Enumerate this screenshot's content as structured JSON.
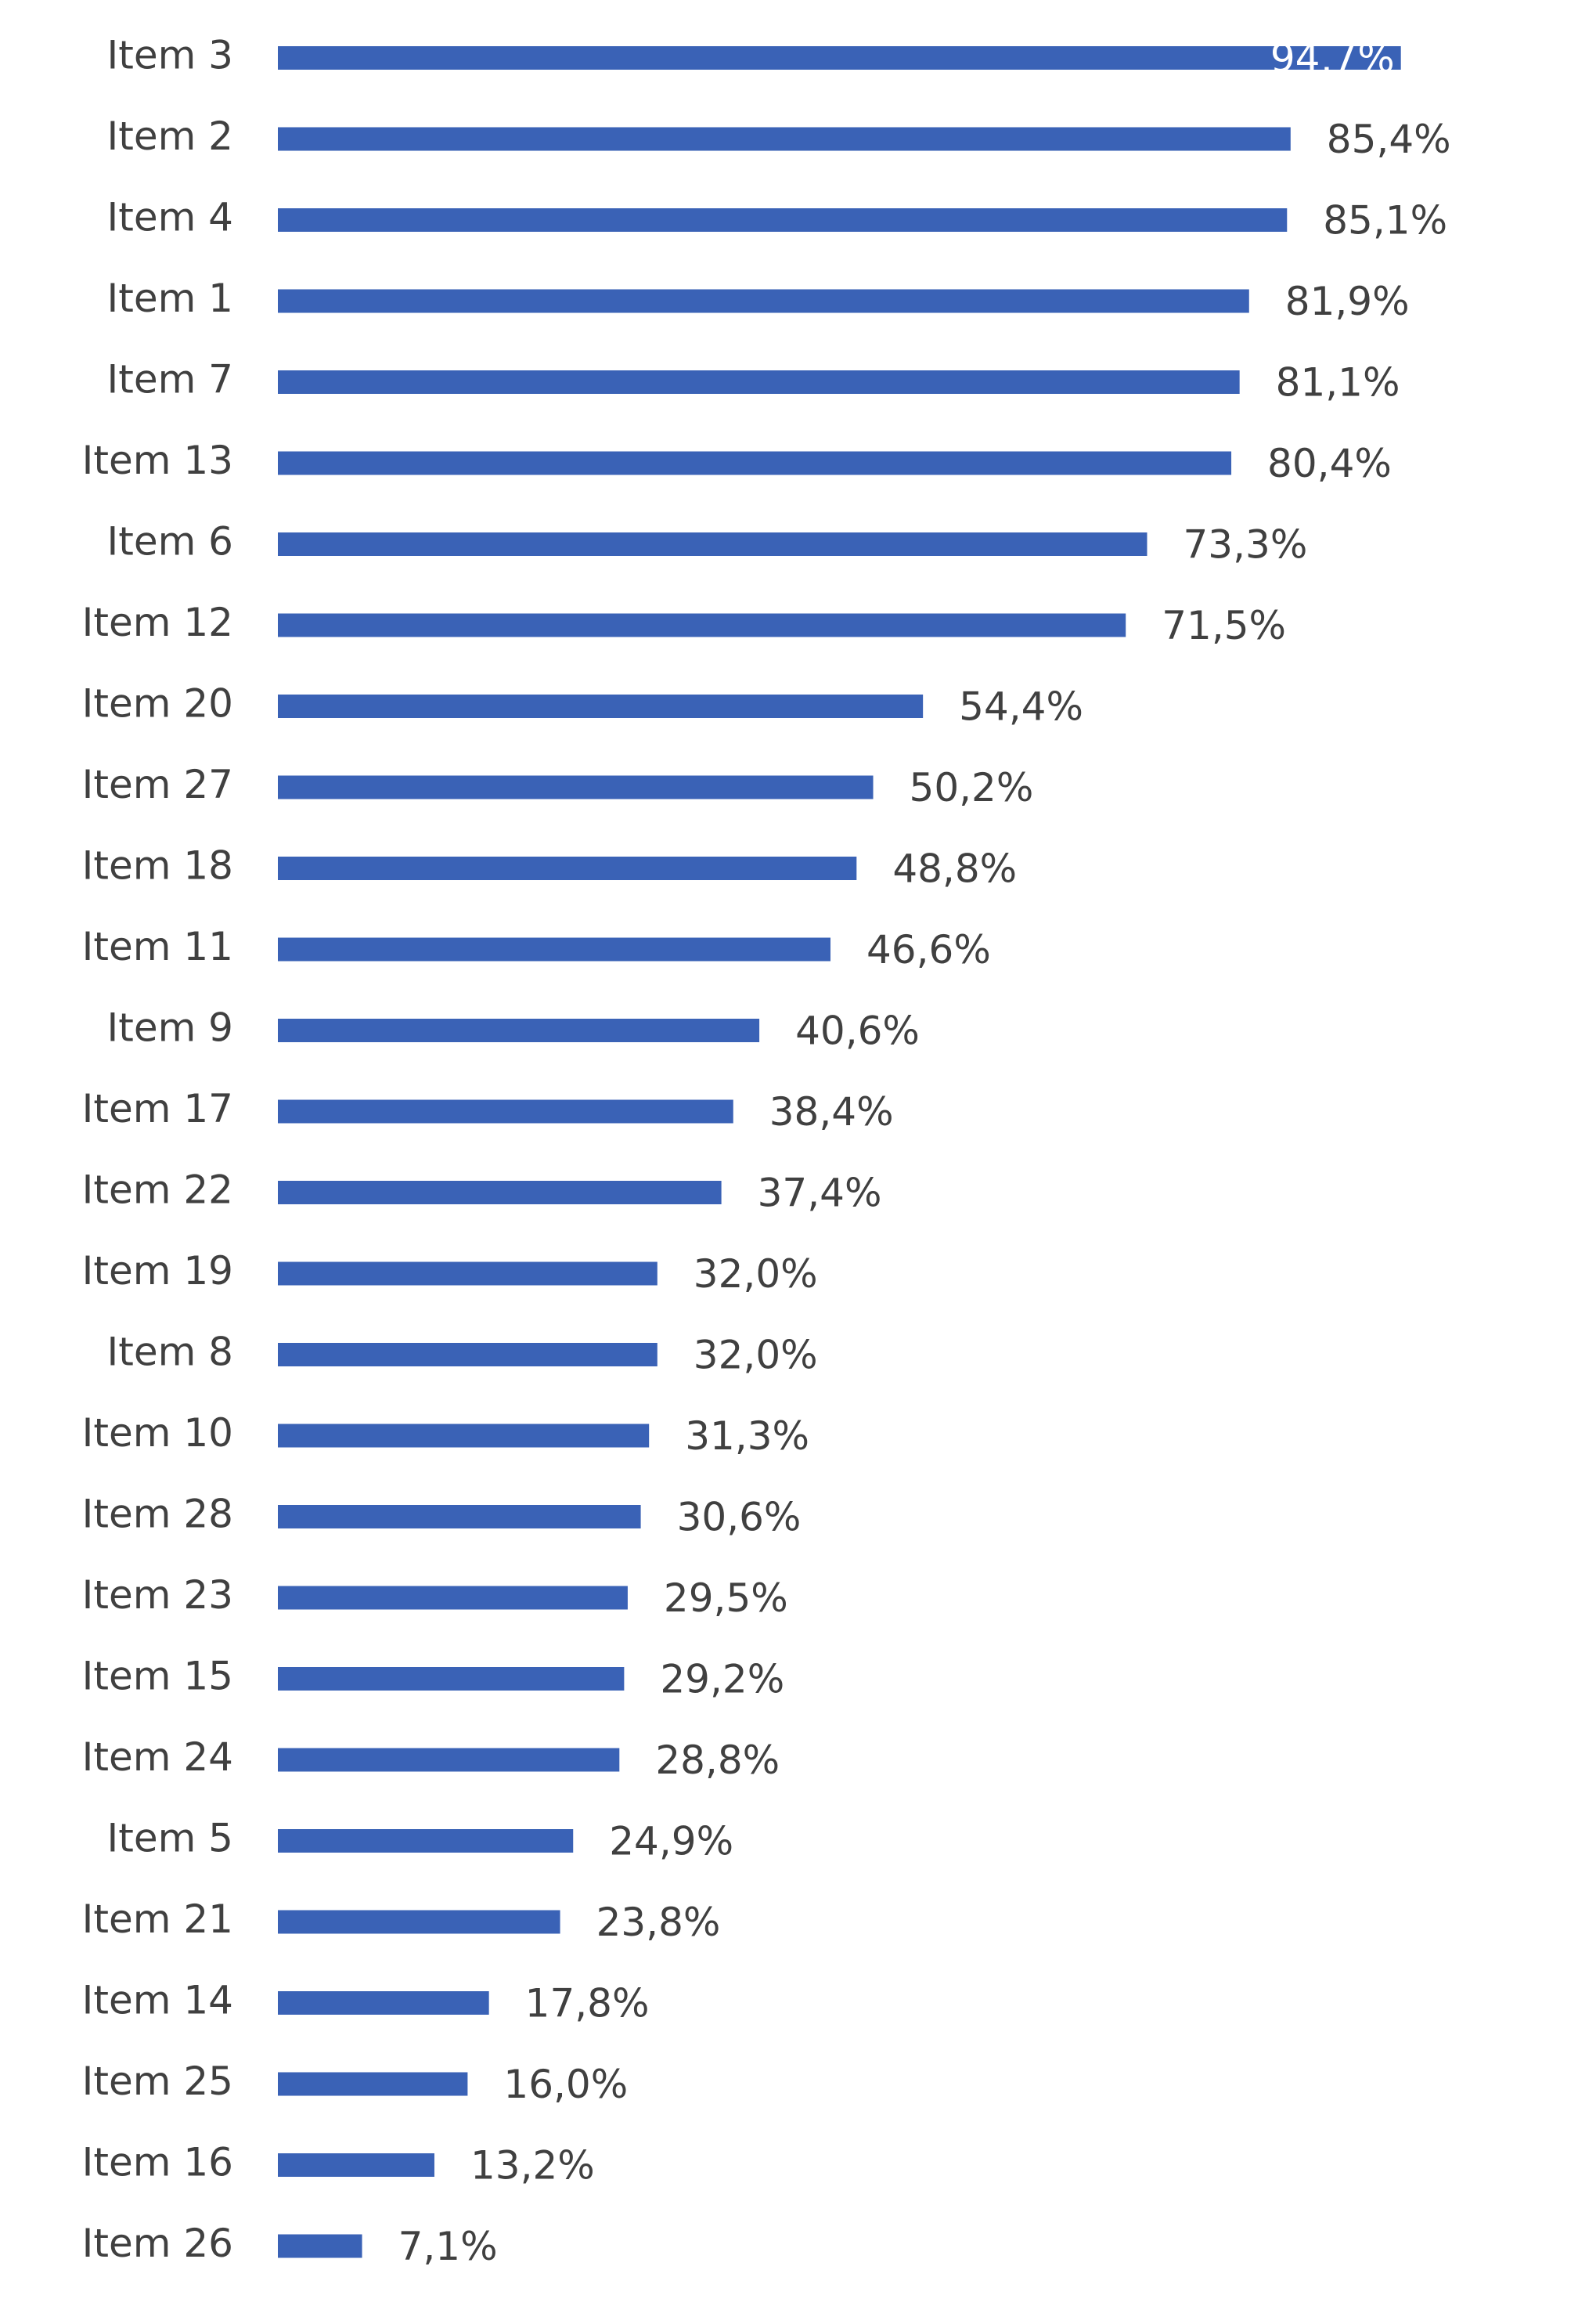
{
  "chart_data": {
    "type": "bar",
    "orientation": "horizontal",
    "categories": [
      "Item 3",
      "Item 2",
      "Item 4",
      "Item 1",
      "Item 7",
      "Item 13",
      "Item 6",
      "Item 12",
      "Item 20",
      "Item 27",
      "Item 18",
      "Item 11",
      "Item 9",
      "Item 17",
      "Item 22",
      "Item 19",
      "Item 8",
      "Item 10",
      "Item 28",
      "Item 23",
      "Item 15",
      "Item 24",
      "Item 5",
      "Item 21",
      "Item 14",
      "Item 25",
      "Item 16",
      "Item 26"
    ],
    "values": [
      94.7,
      85.4,
      85.1,
      81.9,
      81.1,
      80.4,
      73.3,
      71.5,
      54.4,
      50.2,
      48.8,
      46.6,
      40.6,
      38.4,
      37.4,
      32.0,
      32.0,
      31.3,
      30.6,
      29.5,
      29.2,
      28.8,
      24.9,
      23.8,
      17.8,
      16.0,
      13.2,
      7.1
    ],
    "data_labels": [
      "94,7%",
      "85,4%",
      "85,1%",
      "81,9%",
      "81,1%",
      "80,4%",
      "73,3%",
      "71,5%",
      "54,4%",
      "50,2%",
      "48,8%",
      "46,6%",
      "40,6%",
      "38,4%",
      "37,4%",
      "32,0%",
      "32,0%",
      "31,3%",
      "30,6%",
      "29,5%",
      "29,2%",
      "28,8%",
      "24,9%",
      "23,8%",
      "17,8%",
      "16,0%",
      "13,2%",
      "7,1%"
    ],
    "xlim": [
      0,
      100
    ],
    "grid": false,
    "legend": "none",
    "bar_color": "#3a62b6",
    "label_color": "#404040"
  }
}
